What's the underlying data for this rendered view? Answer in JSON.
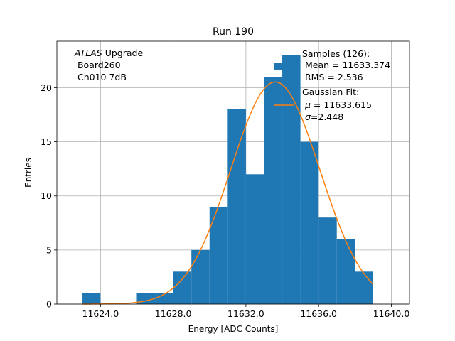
{
  "chart_data": {
    "type": "bar",
    "title": "Run 190",
    "xlabel": "Energy [ADC Counts]",
    "ylabel": "Entries",
    "xlim": [
      11621.6,
      11641.0
    ],
    "ylim": [
      0,
      24.3
    ],
    "grid": true,
    "xticks": [
      11624,
      11628,
      11632,
      11636,
      11640
    ],
    "xtick_labels": [
      "11624.0",
      "11628.0",
      "11632.0",
      "11636.0",
      "11640.0"
    ],
    "yticks": [
      0,
      5,
      10,
      15,
      20
    ],
    "ytick_labels": [
      "0",
      "5",
      "10",
      "15",
      "20"
    ],
    "bin_edges": [
      11621.0,
      11622.0,
      11623.0,
      11624.0,
      11625.0,
      11626.0,
      11627.0,
      11628.0,
      11629.0,
      11630.0,
      11631.0,
      11632.0,
      11633.0,
      11634.0,
      11635.0,
      11636.0,
      11637.0,
      11638.0,
      11639.0
    ],
    "values": [
      0,
      0,
      1,
      0,
      0,
      1,
      1,
      3,
      5,
      9,
      18,
      12,
      21,
      23,
      15,
      8,
      6,
      3
    ],
    "bar_color": "#1f77b4",
    "fit": {
      "name": "Gaussian Fit",
      "mu": 11633.615,
      "sigma": 2.448,
      "n_entries": 126,
      "bin_width": 1.0,
      "x_range": [
        11623.0,
        11639.0
      ],
      "color": "#ff7f0e"
    },
    "annotation": {
      "line1_italic": "ATLAS",
      "line1_rest": " Upgrade",
      "line2": " Board260",
      "line3": " Ch010 7dB"
    },
    "legend": {
      "position": "top-right",
      "hist_title": "Samples (126):",
      "hist_mean": " Mean = 11633.374",
      "hist_rms": " RMS = 2.536",
      "fit_title": "Gaussian Fit:",
      "fit_mu": " = 11633.615",
      "fit_sigma": "=2.448"
    }
  }
}
